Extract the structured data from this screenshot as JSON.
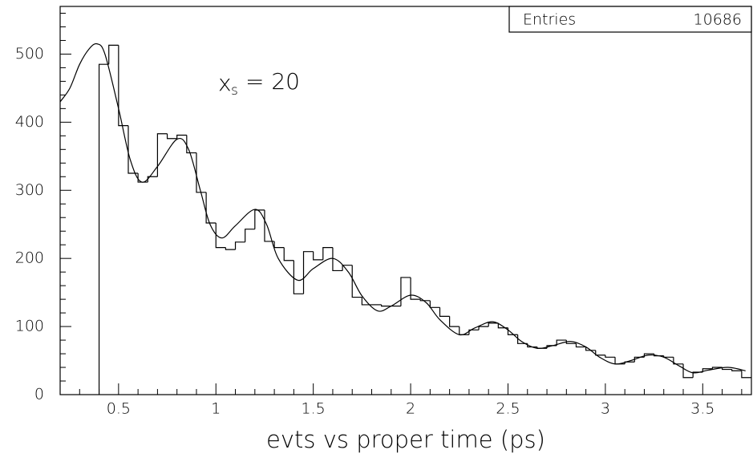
{
  "chart_data": {
    "type": "histogram",
    "xlabel": "evts vs proper time (ps)",
    "annotation": {
      "main": "x",
      "subscript": "s",
      "rest": "= 20"
    },
    "stats": {
      "label": "Entries",
      "value": 10686
    },
    "color": "#000000",
    "xlim": [
      0.2,
      3.75
    ],
    "ylim": [
      0,
      570
    ],
    "xticks": [
      0.5,
      1,
      1.5,
      2,
      2.5,
      3,
      3.5
    ],
    "yticks": [
      0,
      100,
      200,
      300,
      400,
      500
    ],
    "xminorticks": [
      0.2,
      0.3,
      0.4,
      0.6,
      0.7,
      0.8,
      0.9,
      1.1,
      1.2,
      1.3,
      1.4,
      1.6,
      1.7,
      1.8,
      1.9,
      2.1,
      2.2,
      2.3,
      2.4,
      2.6,
      2.7,
      2.8,
      2.9,
      3.1,
      3.2,
      3.3,
      3.4,
      3.6,
      3.7
    ],
    "yminorticks": [
      20,
      40,
      60,
      80,
      120,
      140,
      160,
      180,
      220,
      240,
      260,
      280,
      320,
      340,
      360,
      380,
      420,
      440,
      460,
      480,
      520,
      540,
      560
    ],
    "bins": [
      0.4,
      0.45,
      0.5,
      0.55,
      0.6,
      0.65,
      0.7,
      0.75,
      0.8,
      0.85,
      0.9,
      0.95,
      1.0,
      1.05,
      1.1,
      1.15,
      1.2,
      1.25,
      1.3,
      1.35,
      1.4,
      1.45,
      1.5,
      1.55,
      1.6,
      1.65,
      1.7,
      1.75,
      1.8,
      1.85,
      1.9,
      1.95,
      2.0,
      2.05,
      2.1,
      2.15,
      2.2,
      2.25,
      2.3,
      2.35,
      2.4,
      2.45,
      2.5,
      2.55,
      2.6,
      2.65,
      2.7,
      2.75,
      2.8,
      2.85,
      2.9,
      2.95,
      3.0,
      3.05,
      3.1,
      3.15,
      3.2,
      3.25,
      3.3,
      3.35,
      3.4,
      3.45,
      3.5,
      3.55,
      3.6,
      3.65,
      3.7,
      3.75
    ],
    "values": [
      485,
      513,
      395,
      325,
      312,
      320,
      383,
      376,
      381,
      355,
      297,
      252,
      216,
      213,
      224,
      243,
      271,
      225,
      216,
      197,
      148,
      210,
      198,
      216,
      182,
      190,
      143,
      132,
      132,
      130,
      130,
      172,
      140,
      138,
      128,
      115,
      100,
      88,
      95,
      100,
      105,
      98,
      88,
      75,
      70,
      68,
      72,
      80,
      75,
      70,
      65,
      58,
      55,
      45,
      48,
      55,
      60,
      57,
      55,
      45,
      25,
      33,
      38,
      40,
      37,
      35,
      25
    ],
    "fit": {
      "type": "line",
      "color": "#000000",
      "x": [
        0.2,
        0.25,
        0.3,
        0.35,
        0.39,
        0.43,
        0.5,
        0.56,
        0.62,
        0.7,
        0.8,
        0.86,
        0.92,
        0.97,
        1.03,
        1.1,
        1.2,
        1.26,
        1.32,
        1.42,
        1.5,
        1.6,
        1.68,
        1.75,
        1.83,
        1.9,
        2.0,
        2.08,
        2.15,
        2.25,
        2.33,
        2.42,
        2.5,
        2.57,
        2.65,
        2.73,
        2.82,
        2.9,
        2.97,
        3.05,
        3.13,
        3.22,
        3.3,
        3.38,
        3.45,
        3.53,
        3.63,
        3.72
      ],
      "y": [
        430,
        450,
        485,
        508,
        515,
        500,
        420,
        345,
        312,
        335,
        375,
        360,
        300,
        250,
        230,
        248,
        272,
        250,
        200,
        168,
        185,
        200,
        180,
        145,
        123,
        130,
        146,
        135,
        110,
        88,
        98,
        107,
        95,
        78,
        68,
        72,
        78,
        70,
        55,
        45,
        50,
        58,
        55,
        42,
        32,
        36,
        40,
        35
      ]
    }
  }
}
